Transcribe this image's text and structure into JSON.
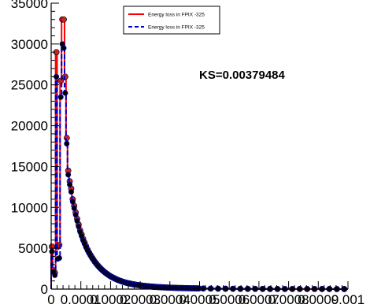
{
  "chart_data": {
    "type": "line",
    "title": "",
    "xlabel": "",
    "ylabel": "",
    "xlim": [
      0,
      0.001
    ],
    "ylim": [
      0,
      35000
    ],
    "x_tick_labels": [
      "0",
      "0.0001",
      "0.0002",
      "0.0003",
      "0.0004",
      "0.0005",
      "0.0006",
      "0.0007",
      "0.0008",
      "0.0009",
      "0.001"
    ],
    "y_tick_labels": [
      "0",
      "5000",
      "10000",
      "15000",
      "20000",
      "25000",
      "30000",
      "35000"
    ],
    "x_tick_values": [
      0,
      0.0001,
      0.0002,
      0.0003,
      0.0004,
      0.0005,
      0.0006,
      0.0007,
      0.0008,
      0.0009,
      0.001
    ],
    "y_tick_values": [
      0,
      5000,
      10000,
      15000,
      20000,
      25000,
      30000,
      35000
    ],
    "annotation": "KS=0.00379484",
    "legend_position": "top-center",
    "colors": {
      "series_a": "#ff0000",
      "series_b": "#0000cc",
      "markers": "#000000",
      "markers_a": "#cc2222"
    },
    "series": [
      {
        "name": "Energy loss in FPIX -325",
        "style": "solid-histogram",
        "color": "#ff0000",
        "x": [
          2.5e-06,
          7.5e-06,
          1.25e-05,
          1.75e-05,
          2.25e-05,
          2.75e-05,
          3.25e-05,
          3.75e-05,
          4.25e-05,
          4.75e-05,
          5.25e-05,
          5.75e-05,
          6.25e-05,
          6.75e-05,
          7.25e-05,
          7.75e-05,
          8.25e-05,
          8.75e-05,
          9.25e-05,
          9.75e-05,
          0.0001025,
          0.0001075,
          0.0001125,
          0.0001175,
          0.0001225,
          0.0001275,
          0.0001325,
          0.0001375,
          0.0001425,
          0.0001475,
          0.0001525,
          0.0001575,
          0.0001625,
          0.0001675,
          0.0001725,
          0.0001775,
          0.0001825,
          0.0001875,
          0.0001925,
          0.0001975,
          0.0002025,
          0.0002075,
          0.0002125,
          0.0002175,
          0.0002225,
          0.0002275,
          0.0002325,
          0.0002375,
          0.0002425,
          0.0002475,
          0.0002525,
          0.0002575,
          0.0002625,
          0.0002675,
          0.0002725,
          0.0002775,
          0.0002825,
          0.0002875,
          0.0002925,
          0.0002975,
          0.0003025,
          0.0003075,
          0.0003125,
          0.0003175,
          0.0003225,
          0.0003275,
          0.0003325,
          0.0003375,
          0.0003425,
          0.0003475,
          0.0003525,
          0.0003575,
          0.0003625,
          0.0003675,
          0.0003725,
          0.0003775,
          0.0003825,
          0.0003875,
          0.0003925,
          0.0003975,
          0.0004025,
          0.0004075,
          0.0004125,
          0.0004175,
          0.0004225,
          0.0004275,
          0.0004325,
          0.0004375,
          0.0004425,
          0.0004475,
          0.0004525,
          0.0004575,
          0.0004625,
          0.0004675,
          0.0004725,
          0.0004775,
          0.0004825,
          0.0004875,
          0.0004925,
          0.0004975,
          0.0005125,
          0.0005375,
          0.0005625,
          0.0005875,
          0.0006125,
          0.0006375,
          0.0006625,
          0.0006875,
          0.0007125,
          0.0007375,
          0.0007625,
          0.0007875,
          0.0008125,
          0.0008375,
          0.0008625,
          0.0008875,
          0.0009125,
          0.0009375,
          0.0009625,
          0.0009875
        ],
        "y": [
          5200,
          2300,
          2000,
          29000,
          5200,
          5400,
          25500,
          33000,
          33000,
          26000,
          18500,
          14500,
          13200,
          12300,
          11000,
          10200,
          9400,
          8600,
          7900,
          7200,
          6700,
          6150,
          5700,
          5250,
          4850,
          4500,
          4180,
          3880,
          3600,
          3340,
          3100,
          2880,
          2680,
          2490,
          2320,
          2160,
          2010,
          1880,
          1750,
          1630,
          1520,
          1420,
          1330,
          1240,
          1160,
          1085,
          1015,
          950,
          890,
          835,
          785,
          738,
          695,
          655,
          618,
          583,
          551,
          521,
          493,
          467,
          443,
          420,
          399,
          379,
          360,
          342,
          325,
          310,
          295,
          281,
          268,
          256,
          244,
          233,
          223,
          213,
          204,
          195,
          187,
          179,
          172,
          165,
          158,
          152,
          146,
          140,
          135,
          130,
          125,
          120,
          116,
          112,
          108,
          104,
          100,
          97,
          94,
          91,
          88,
          85,
          74,
          60,
          50,
          42,
          35,
          30,
          26,
          22,
          19,
          17,
          15,
          13,
          12,
          11,
          10,
          9,
          8,
          7,
          6,
          6
        ]
      },
      {
        "name": "Energy loss in FPIX -325",
        "style": "dashed-histogram",
        "color": "#0000cc",
        "x": [
          2.5e-06,
          7.5e-06,
          1.25e-05,
          1.75e-05,
          2.25e-05,
          2.75e-05,
          3.25e-05,
          3.75e-05,
          4.25e-05,
          4.75e-05,
          5.25e-05,
          5.75e-05,
          6.25e-05,
          6.75e-05,
          7.25e-05,
          7.75e-05,
          8.25e-05,
          8.75e-05,
          9.25e-05,
          9.75e-05,
          0.0001025,
          0.0001075,
          0.0001125,
          0.0001175,
          0.0001225,
          0.0001275,
          0.0001325,
          0.0001375,
          0.0001425,
          0.0001475,
          0.0001525,
          0.0001575,
          0.0001625,
          0.0001675,
          0.0001725,
          0.0001775,
          0.0001825,
          0.0001875,
          0.0001925,
          0.0001975,
          0.0002025,
          0.0002075,
          0.0002125,
          0.0002175,
          0.0002225,
          0.0002275,
          0.0002325,
          0.0002375,
          0.0002425,
          0.0002475,
          0.0002525,
          0.0002575,
          0.0002625,
          0.0002675,
          0.0002725,
          0.0002775,
          0.0002825,
          0.0002875,
          0.0002925,
          0.0002975,
          0.0003025,
          0.0003075,
          0.0003125,
          0.0003175,
          0.0003225,
          0.0003275,
          0.0003325,
          0.0003375,
          0.0003425,
          0.0003475,
          0.0003525,
          0.0003575,
          0.0003625,
          0.0003675,
          0.0003725,
          0.0003775,
          0.0003825,
          0.0003875,
          0.0003925,
          0.0003975,
          0.0004025,
          0.0004075,
          0.0004125,
          0.0004175,
          0.0004225,
          0.0004275,
          0.0004325,
          0.0004375,
          0.0004425,
          0.0004475,
          0.0004525,
          0.0004575,
          0.0004625,
          0.0004675,
          0.0004725,
          0.0004775,
          0.0004825,
          0.0004875,
          0.0004925,
          0.0004975,
          0.0005125,
          0.0005375,
          0.0005625,
          0.0005875,
          0.0006125,
          0.0006375,
          0.0006625,
          0.0006875,
          0.0007125,
          0.0007375,
          0.0007625,
          0.0007875,
          0.0008125,
          0.0008375,
          0.0008625,
          0.0008875,
          0.0009125,
          0.0009375,
          0.0009625,
          0.0009875
        ],
        "y": [
          4600,
          2100,
          1700,
          26000,
          3700,
          3800,
          23500,
          30000,
          29500,
          24000,
          17800,
          14000,
          12800,
          11900,
          10700,
          9900,
          9100,
          8350,
          7650,
          7000,
          6500,
          5980,
          5550,
          5120,
          4740,
          4400,
          4090,
          3800,
          3530,
          3280,
          3045,
          2830,
          2635,
          2450,
          2285,
          2130,
          1985,
          1855,
          1730,
          1612,
          1504,
          1405,
          1317,
          1229,
          1150,
          1076,
          1007,
          943,
          884,
          829,
          780,
          733,
          691,
          651,
          614,
          580,
          548,
          518,
          490,
          464,
          440,
          418,
          397,
          377,
          358,
          340,
          324,
          308,
          294,
          280,
          267,
          255,
          243,
          232,
          222,
          212,
          203,
          194,
          186,
          178,
          171,
          164,
          158,
          152,
          146,
          140,
          135,
          130,
          125,
          120,
          116,
          112,
          108,
          104,
          100,
          97,
          94,
          91,
          88,
          85,
          73,
          59,
          49,
          41,
          34,
          29,
          25,
          21,
          18,
          16,
          14,
          12,
          11,
          10,
          9,
          8,
          7,
          6,
          6,
          5
        ]
      }
    ]
  }
}
